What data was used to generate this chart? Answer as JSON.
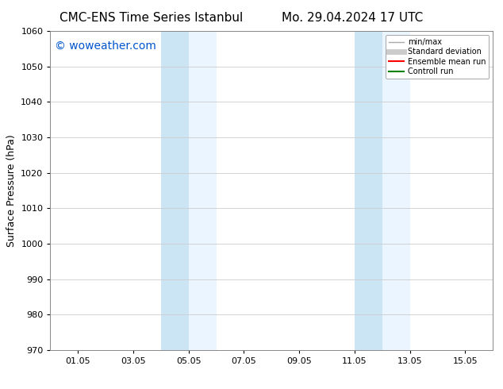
{
  "title_left": "CMC-ENS Time Series Istanbul",
  "title_right": "Mo. 29.04.2024 17 UTC",
  "ylabel": "Surface Pressure (hPa)",
  "ylim": [
    970,
    1060
  ],
  "yticks": [
    970,
    980,
    990,
    1000,
    1010,
    1020,
    1030,
    1040,
    1050,
    1060
  ],
  "xtick_labels": [
    "01.05",
    "03.05",
    "05.05",
    "07.05",
    "09.05",
    "11.05",
    "13.05",
    "15.05"
  ],
  "xtick_positions": [
    1,
    3,
    5,
    7,
    9,
    11,
    13,
    15
  ],
  "xlim": [
    0,
    16
  ],
  "shaded_bands": [
    {
      "x_start": 4.0,
      "x_end": 5.0,
      "color": "#cce5f5",
      "alpha": 1.0
    },
    {
      "x_start": 5.0,
      "x_end": 6.0,
      "color": "#daeeff",
      "alpha": 0.55
    },
    {
      "x_start": 11.0,
      "x_end": 12.0,
      "color": "#cce5f5",
      "alpha": 1.0
    },
    {
      "x_start": 12.0,
      "x_end": 13.0,
      "color": "#daeeff",
      "alpha": 0.55
    }
  ],
  "watermark_text": "© woweather.com",
  "watermark_color": "#0055cc",
  "watermark_fontsize": 10,
  "legend_entries": [
    {
      "label": "min/max",
      "color": "#aaaaaa",
      "lw": 1.0
    },
    {
      "label": "Standard deviation",
      "color": "#cccccc",
      "lw": 5
    },
    {
      "label": "Ensemble mean run",
      "color": "red",
      "lw": 1.5
    },
    {
      "label": "Controll run",
      "color": "green",
      "lw": 1.5
    }
  ],
  "bg_color": "#ffffff",
  "grid_color": "#cccccc",
  "title_fontsize": 11,
  "ylabel_fontsize": 9,
  "tick_fontsize": 8,
  "legend_fontsize": 7
}
